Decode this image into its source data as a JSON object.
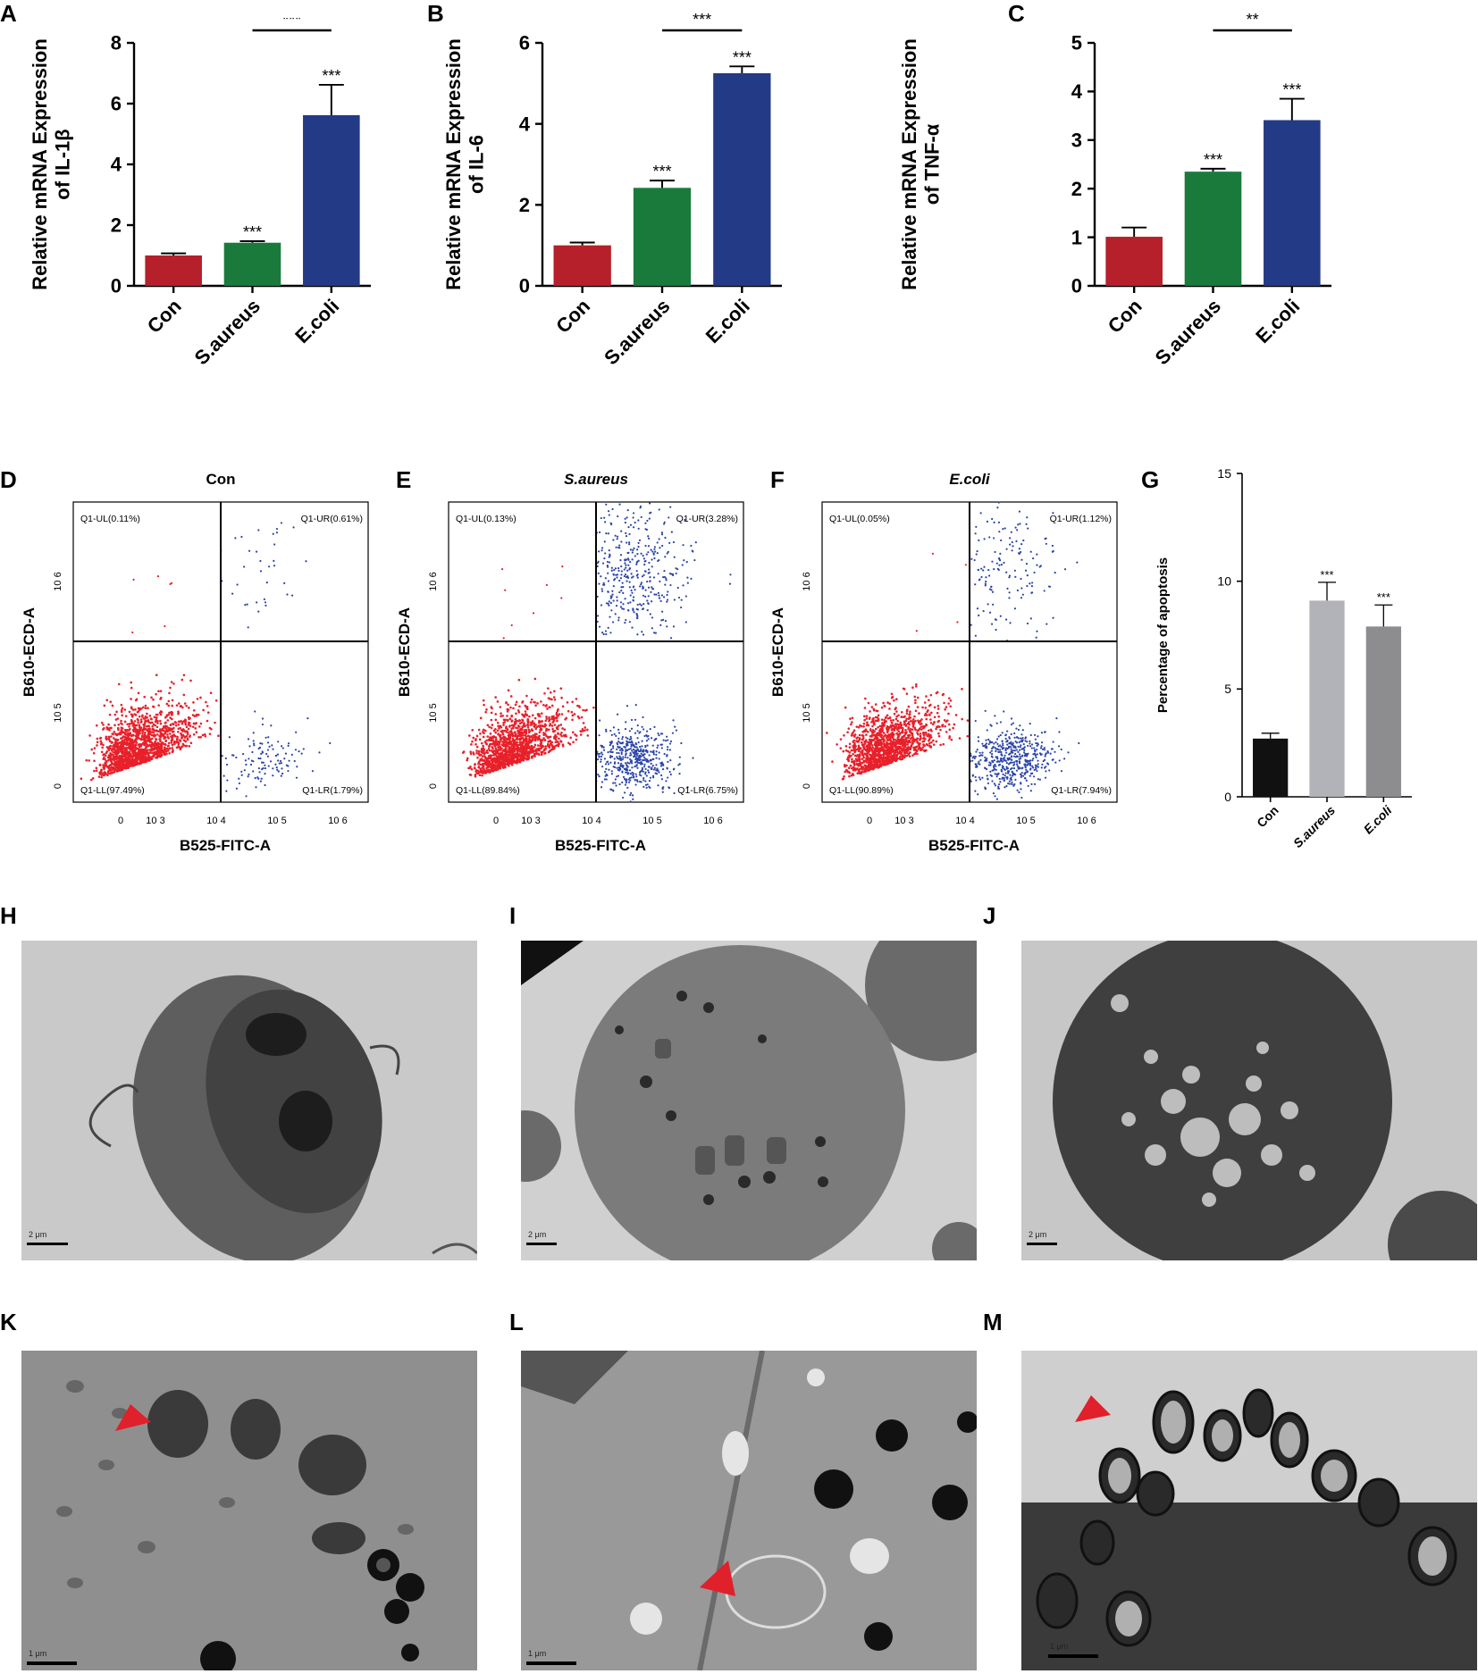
{
  "panel_labels": [
    "A",
    "B",
    "C",
    "D",
    "E",
    "F",
    "G",
    "H",
    "I",
    "J",
    "K",
    "L",
    "M"
  ],
  "chart_data": [
    {
      "id": "A",
      "type": "bar",
      "categories": [
        "Con",
        "S.aureus",
        "E.coli"
      ],
      "values": [
        1.0,
        1.42,
        5.62
      ],
      "errors": [
        0.07,
        0.05,
        1.0
      ],
      "colors": [
        "#b5202a",
        "#1a7a3c",
        "#233a86"
      ],
      "ylabel": [
        "Relative mRNA Expression",
        "of IL-1β"
      ],
      "ylim": [
        0,
        8
      ],
      "yticks": [
        0,
        2,
        4,
        6,
        8
      ],
      "sig_labels": [
        "",
        "***",
        "***"
      ],
      "bracket": {
        "from": 1,
        "to": 2,
        "label": "***"
      }
    },
    {
      "id": "B",
      "type": "bar",
      "categories": [
        "Con",
        "S.aureus",
        "E.coli"
      ],
      "values": [
        1.0,
        2.42,
        5.25
      ],
      "errors": [
        0.07,
        0.18,
        0.17
      ],
      "colors": [
        "#b5202a",
        "#1a7a3c",
        "#233a86"
      ],
      "ylabel": [
        "Relative mRNA Expression",
        "of IL-6"
      ],
      "ylim": [
        0,
        6
      ],
      "yticks": [
        0,
        2,
        4,
        6
      ],
      "sig_labels": [
        "",
        "***",
        "***"
      ],
      "bracket": {
        "from": 1,
        "to": 2,
        "label": "***"
      }
    },
    {
      "id": "C",
      "type": "bar",
      "categories": [
        "Con",
        "S.aureus",
        "E.coli"
      ],
      "values": [
        1.01,
        2.35,
        3.41
      ],
      "errors": [
        0.19,
        0.06,
        0.44
      ],
      "colors": [
        "#b5202a",
        "#1a7a3c",
        "#233a86"
      ],
      "ylabel": [
        "Relative mRNA Expression",
        "of TNF-α"
      ],
      "ylim": [
        0,
        5
      ],
      "yticks": [
        0,
        1,
        2,
        3,
        4,
        5
      ],
      "sig_labels": [
        "",
        "***",
        "***"
      ],
      "bracket": {
        "from": 1,
        "to": 2,
        "label": "**"
      }
    },
    {
      "id": "D",
      "type": "scatter",
      "title": "Con",
      "xlabel": "B525-FITC-A",
      "ylabel": "B610-ECD-A",
      "x_ticks": [
        "0",
        "10 3",
        "10 4",
        "10 5",
        "10 6"
      ],
      "y_ticks": [
        "0",
        "10 5",
        "10 6"
      ],
      "quadrants": {
        "UL": "Q1-UL(0.11%)",
        "UR": "Q1-UR(0.61%)",
        "LL": "Q1-LL(97.49%)",
        "LR": "Q1-LR(1.79%)"
      }
    },
    {
      "id": "E",
      "type": "scatter",
      "title": "S.aureus",
      "xlabel": "B525-FITC-A",
      "ylabel": "B610-ECD-A",
      "x_ticks": [
        "0",
        "10 3",
        "10 4",
        "10 5",
        "10 6"
      ],
      "y_ticks": [
        "0",
        "10 5",
        "10 6"
      ],
      "quadrants": {
        "UL": "Q1-UL(0.13%)",
        "UR": "Q1-UR(3.28%)",
        "LL": "Q1-LL(89.84%)",
        "LR": "Q1-LR(6.75%)"
      }
    },
    {
      "id": "F",
      "type": "scatter",
      "title": "E.coli",
      "xlabel": "B525-FITC-A",
      "ylabel": "B610-ECD-A",
      "x_ticks": [
        "0",
        "10 3",
        "10 4",
        "10 5",
        "10 6"
      ],
      "y_ticks": [
        "0",
        "10 5",
        "10 6"
      ],
      "quadrants": {
        "UL": "Q1-UL(0.05%)",
        "UR": "Q1-UR(1.12%)",
        "LL": "Q1-LL(90.89%)",
        "LR": "Q1-LR(7.94%)"
      }
    },
    {
      "id": "G",
      "type": "bar",
      "categories": [
        "Con",
        "S.aureus",
        "E.coli"
      ],
      "values": [
        2.7,
        9.1,
        7.9
      ],
      "errors": [
        0.25,
        0.85,
        1.0
      ],
      "colors": [
        "#111111",
        "#b2b3b8",
        "#8d8d8f"
      ],
      "ylabel": [
        "Percentage of apoptosis"
      ],
      "ylim": [
        0,
        15
      ],
      "yticks": [
        0,
        5,
        10,
        15
      ],
      "sig_labels": [
        "",
        "***",
        "***"
      ]
    }
  ],
  "em_panels": [
    {
      "id": "H",
      "scale": "2 μm"
    },
    {
      "id": "I",
      "scale": "2 μm"
    },
    {
      "id": "J",
      "scale": "2 μm"
    },
    {
      "id": "K",
      "scale": "1 μm"
    },
    {
      "id": "L",
      "scale": "1 μm"
    },
    {
      "id": "M",
      "scale": "1 μm"
    }
  ]
}
